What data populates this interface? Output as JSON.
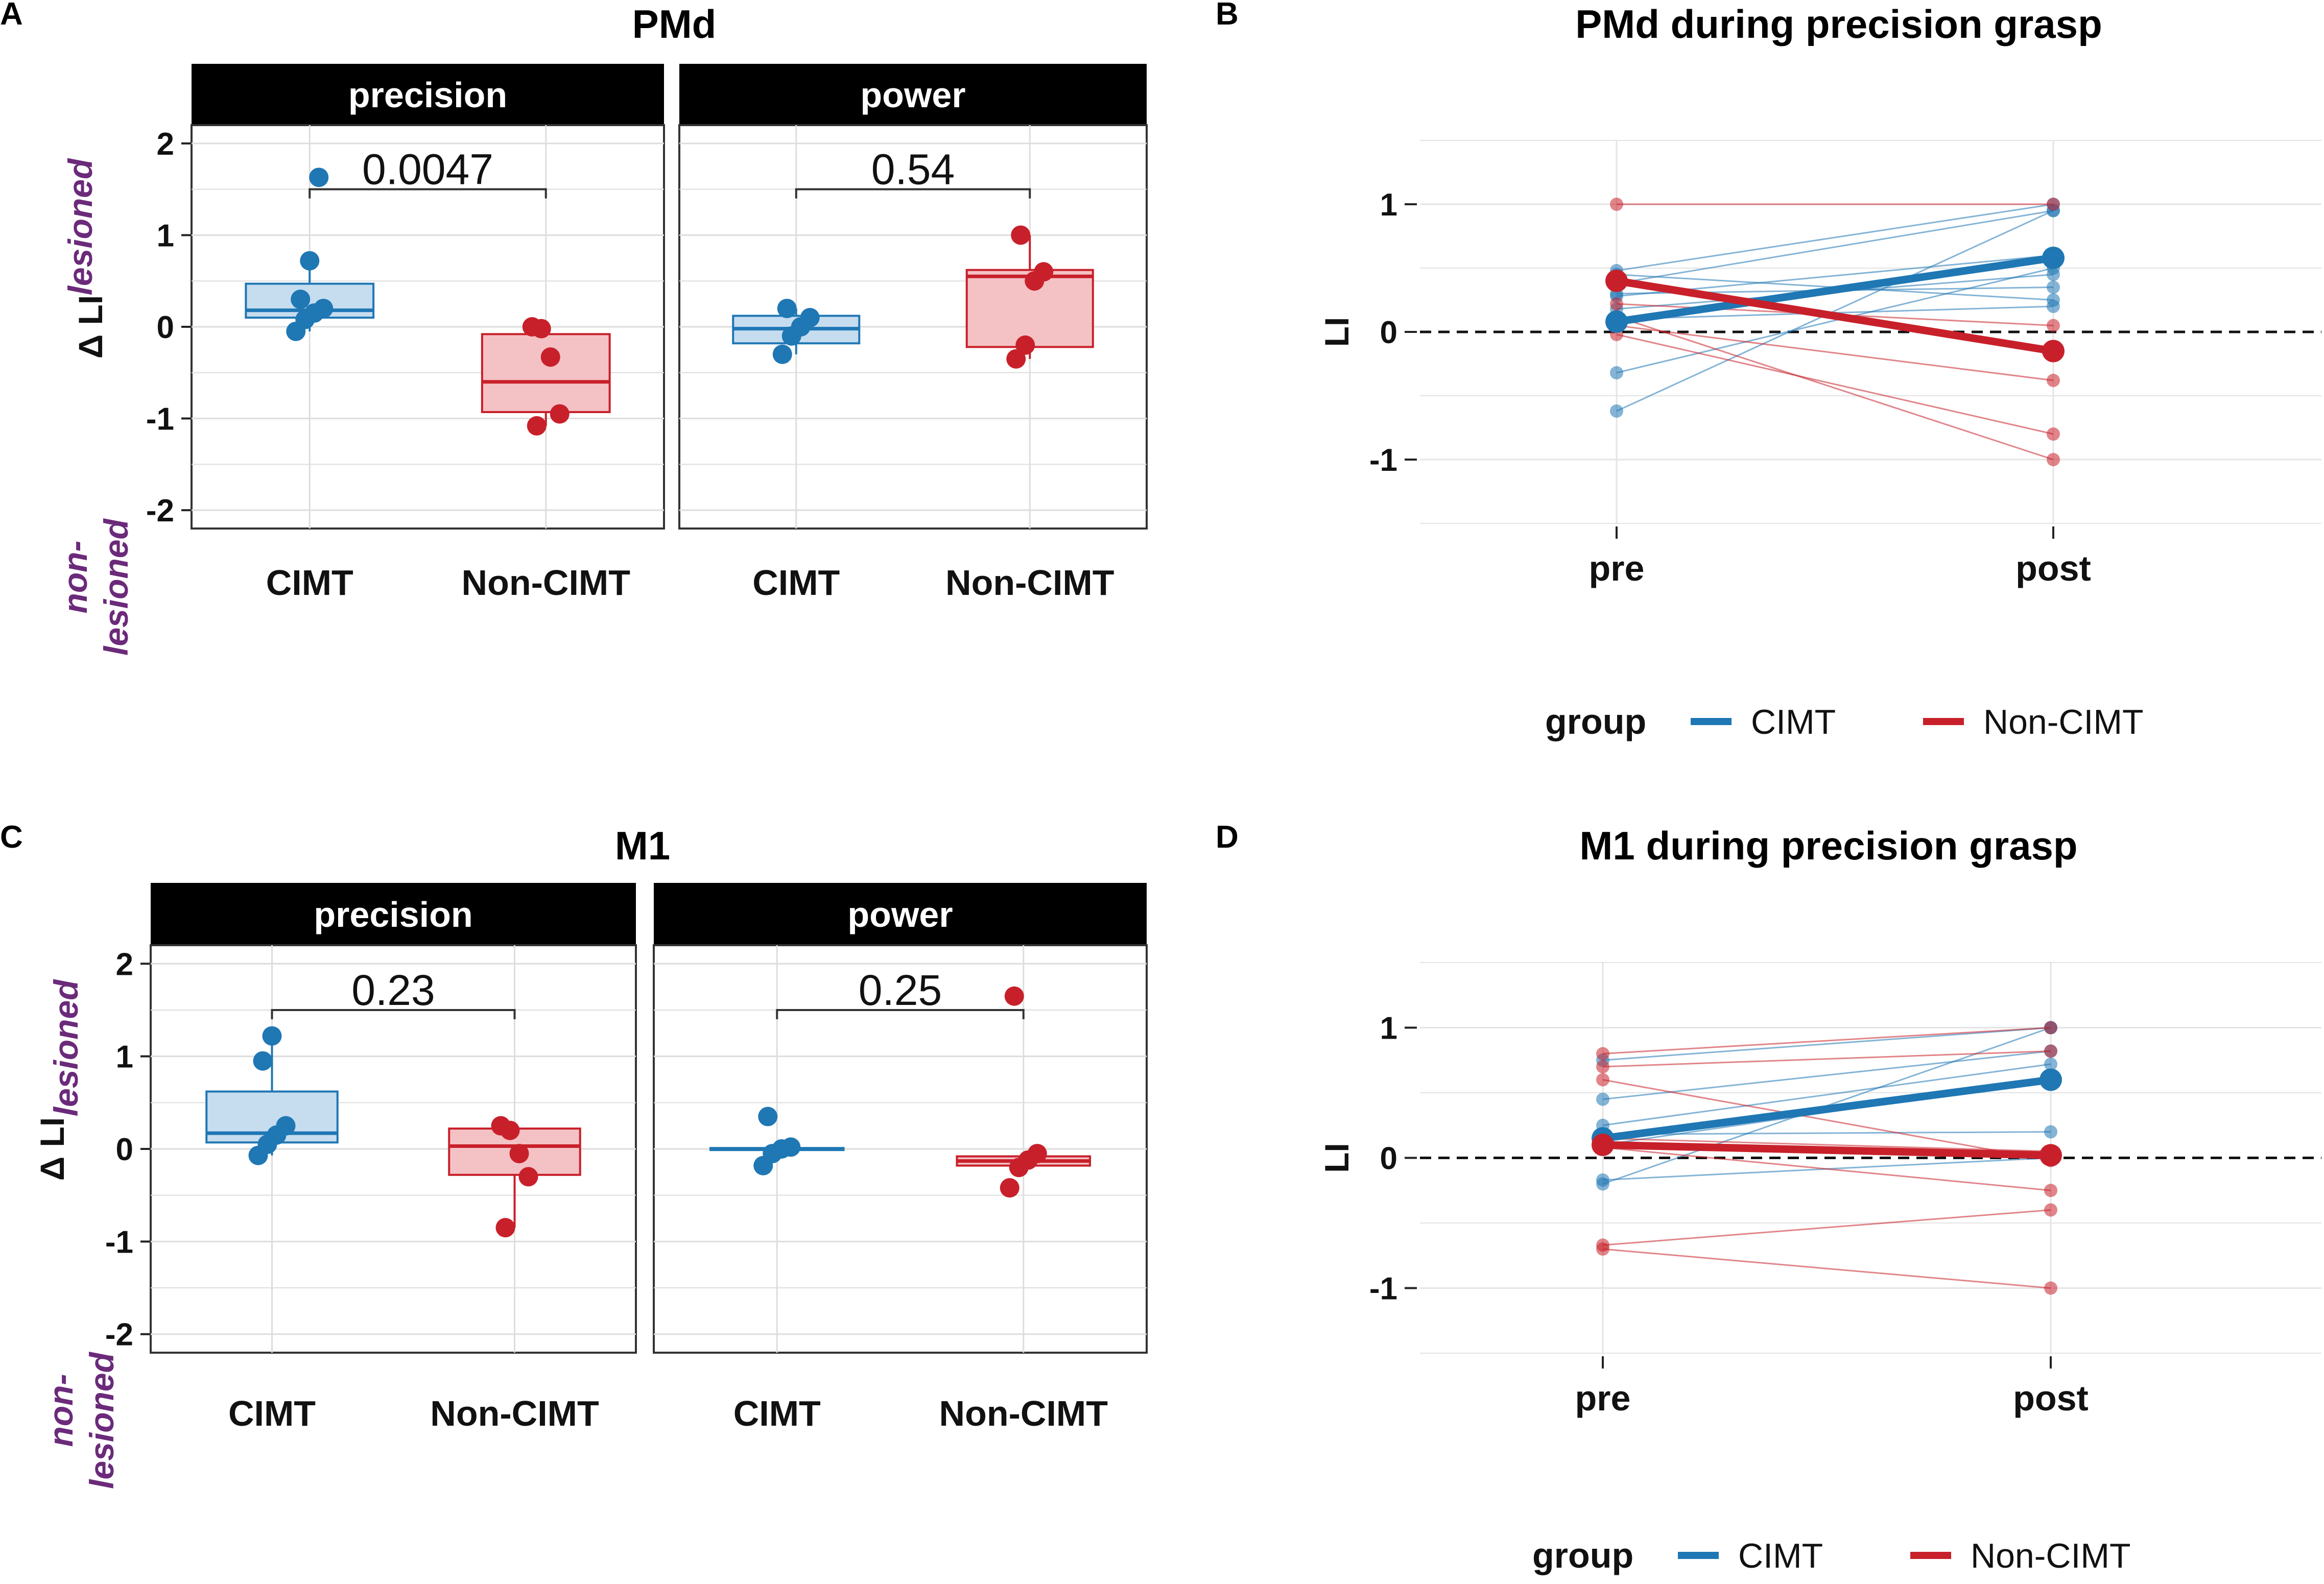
{
  "colors": {
    "cimt": "#1f77b4",
    "noncimt": "#c8202a",
    "side_label": "#6b2a7a",
    "strip": "#000000",
    "grid": "#dddddd"
  },
  "side_labels": {
    "lesioned": "lesioned",
    "non_line1": "non-",
    "non_line2": "lesioned",
    "delta_li": "Δ LI",
    "li": "LI"
  },
  "chart_data": [
    {
      "panel_label": "A",
      "type": "box",
      "title": "PMd",
      "ylabel": "Δ LI",
      "ylim": [
        -2.2,
        2.2
      ],
      "yticks": [
        "-2",
        "-1",
        "0",
        "1",
        "2"
      ],
      "facets": [
        {
          "strip": "precision",
          "pvalue": "0.0047",
          "categories": [
            "CIMT",
            "Non-CIMT"
          ],
          "groups": [
            {
              "name": "CIMT",
              "q1": 0.1,
              "median": 0.18,
              "q3": 0.47,
              "whisker_low": -0.05,
              "whisker_high": 0.72,
              "points": [
                -0.05,
                0.08,
                0.15,
                0.2,
                0.3,
                0.72,
                1.63
              ]
            },
            {
              "name": "Non-CIMT",
              "q1": -0.93,
              "median": -0.6,
              "q3": -0.08,
              "whisker_low": -1.08,
              "whisker_high": 0.0,
              "points": [
                0.0,
                -0.02,
                -0.33,
                -0.95,
                -1.08
              ]
            }
          ]
        },
        {
          "strip": "power",
          "pvalue": "0.54",
          "categories": [
            "CIMT",
            "Non-CIMT"
          ],
          "groups": [
            {
              "name": "CIMT",
              "q1": -0.18,
              "median": -0.02,
              "q3": 0.12,
              "whisker_low": -0.3,
              "whisker_high": 0.2,
              "points": [
                -0.3,
                -0.1,
                0.0,
                0.1,
                0.2
              ]
            },
            {
              "name": "Non-CIMT",
              "q1": -0.22,
              "median": 0.55,
              "q3": 0.62,
              "whisker_low": -0.35,
              "whisker_high": 1.0,
              "points": [
                -0.35,
                -0.2,
                0.5,
                0.6,
                1.0
              ]
            }
          ]
        }
      ]
    },
    {
      "panel_label": "B",
      "type": "line",
      "title": "PMd during precision grasp",
      "ylabel": "LI",
      "ylim": [
        -1.5,
        1.5
      ],
      "yticks": [
        "-1",
        "0",
        "1"
      ],
      "x": [
        "pre",
        "post"
      ],
      "legend_title": "group",
      "legend": [
        "CIMT",
        "Non-CIMT"
      ],
      "individual": [
        {
          "group": "CIMT",
          "values": [
            0.48,
            1.0
          ]
        },
        {
          "group": "CIMT",
          "values": [
            0.38,
            0.95
          ]
        },
        {
          "group": "CIMT",
          "values": [
            0.28,
            0.6
          ]
        },
        {
          "group": "CIMT",
          "values": [
            0.18,
            0.45
          ]
        },
        {
          "group": "CIMT",
          "values": [
            0.3,
            0.35
          ]
        },
        {
          "group": "CIMT",
          "values": [
            0.45,
            0.25
          ]
        },
        {
          "group": "CIMT",
          "values": [
            0.1,
            0.2
          ]
        },
        {
          "group": "CIMT",
          "values": [
            -0.32,
            0.5
          ]
        },
        {
          "group": "CIMT",
          "values": [
            -0.62,
            0.95
          ]
        },
        {
          "group": "Non-CIMT",
          "values": [
            1.0,
            1.0
          ]
        },
        {
          "group": "Non-CIMT",
          "values": [
            0.42,
            -0.15
          ]
        },
        {
          "group": "Non-CIMT",
          "values": [
            0.22,
            0.05
          ]
        },
        {
          "group": "Non-CIMT",
          "values": [
            0.05,
            -0.38
          ]
        },
        {
          "group": "Non-CIMT",
          "values": [
            -0.02,
            -0.8
          ]
        },
        {
          "group": "Non-CIMT",
          "values": [
            0.12,
            -1.0
          ]
        }
      ],
      "series": [
        {
          "name": "CIMT",
          "values": [
            0.08,
            0.58
          ]
        },
        {
          "name": "Non-CIMT",
          "values": [
            0.4,
            -0.15
          ]
        }
      ]
    },
    {
      "panel_label": "C",
      "type": "box",
      "title": "M1",
      "ylabel": "Δ LI",
      "ylim": [
        -2.2,
        2.2
      ],
      "yticks": [
        "-2",
        "-1",
        "0",
        "1",
        "2"
      ],
      "facets": [
        {
          "strip": "precision",
          "pvalue": "0.23",
          "categories": [
            "CIMT",
            "Non-CIMT"
          ],
          "groups": [
            {
              "name": "CIMT",
              "q1": 0.07,
              "median": 0.17,
              "q3": 0.62,
              "whisker_low": -0.07,
              "whisker_high": 1.22,
              "points": [
                -0.07,
                0.05,
                0.15,
                0.25,
                0.95,
                1.22
              ]
            },
            {
              "name": "Non-CIMT",
              "q1": -0.28,
              "median": 0.03,
              "q3": 0.22,
              "whisker_low": -0.85,
              "whisker_high": 0.25,
              "points": [
                0.25,
                0.2,
                -0.05,
                -0.3,
                -0.85
              ]
            }
          ]
        },
        {
          "strip": "power",
          "pvalue": "0.25",
          "categories": [
            "CIMT",
            "Non-CIMT"
          ],
          "groups": [
            {
              "name": "CIMT",
              "q1": 0.0,
              "median": 0.0,
              "q3": 0.01,
              "whisker_low": 0.0,
              "whisker_high": 0.01,
              "points": [
                -0.18,
                -0.05,
                0.0,
                0.02,
                0.35
              ]
            },
            {
              "name": "Non-CIMT",
              "q1": -0.18,
              "median": -0.13,
              "q3": -0.08,
              "whisker_low": -0.18,
              "whisker_high": -0.08,
              "points": [
                -0.42,
                -0.2,
                -0.12,
                -0.05,
                1.65
              ]
            }
          ]
        }
      ]
    },
    {
      "panel_label": "D",
      "type": "line",
      "title": "M1 during precision grasp",
      "ylabel": "LI",
      "ylim": [
        -1.5,
        1.5
      ],
      "yticks": [
        "-1",
        "0",
        "1"
      ],
      "x": [
        "pre",
        "post"
      ],
      "legend_title": "group",
      "legend": [
        "CIMT",
        "Non-CIMT"
      ],
      "individual": [
        {
          "group": "CIMT",
          "values": [
            0.75,
            1.0
          ]
        },
        {
          "group": "CIMT",
          "values": [
            0.45,
            0.82
          ]
        },
        {
          "group": "CIMT",
          "values": [
            0.25,
            0.72
          ]
        },
        {
          "group": "CIMT",
          "values": [
            0.1,
            0.6
          ]
        },
        {
          "group": "CIMT",
          "values": [
            0.18,
            0.2
          ]
        },
        {
          "group": "CIMT",
          "values": [
            -0.17,
            0.0
          ]
        },
        {
          "group": "CIMT",
          "values": [
            -0.2,
            1.0
          ]
        },
        {
          "group": "Non-CIMT",
          "values": [
            0.8,
            1.0
          ]
        },
        {
          "group": "Non-CIMT",
          "values": [
            0.6,
            -0.02
          ]
        },
        {
          "group": "Non-CIMT",
          "values": [
            0.7,
            0.82
          ]
        },
        {
          "group": "Non-CIMT",
          "values": [
            0.15,
            0.05
          ]
        },
        {
          "group": "Non-CIMT",
          "values": [
            0.08,
            -0.25
          ]
        },
        {
          "group": "Non-CIMT",
          "values": [
            -0.67,
            -0.4
          ]
        },
        {
          "group": "Non-CIMT",
          "values": [
            -0.7,
            -1.0
          ]
        }
      ],
      "series": [
        {
          "name": "CIMT",
          "values": [
            0.15,
            0.6
          ]
        },
        {
          "name": "Non-CIMT",
          "values": [
            0.1,
            0.02
          ]
        }
      ]
    }
  ]
}
